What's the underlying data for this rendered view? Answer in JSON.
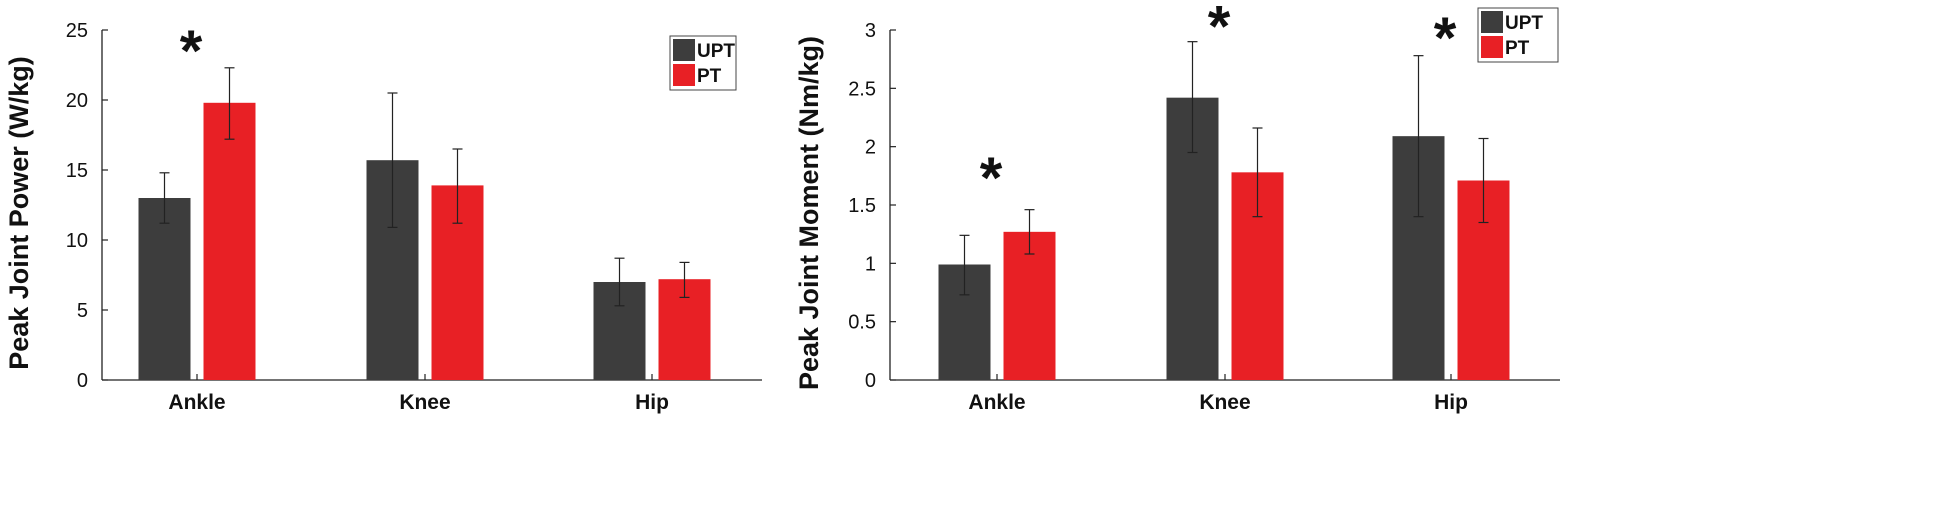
{
  "chart_data": [
    {
      "type": "bar",
      "title": "",
      "xlabel": "",
      "ylabel": "Peak Joint Power (W/kg)",
      "categories": [
        "Ankle",
        "Knee",
        "Hip"
      ],
      "ylim": [
        0,
        25
      ],
      "yticks": [
        0,
        5,
        10,
        15,
        20,
        25
      ],
      "series": [
        {
          "name": "UPT",
          "color": "#3d3d3d",
          "values": [
            13.0,
            15.7,
            7.0
          ],
          "err_low": [
            11.2,
            10.9,
            5.3
          ],
          "err_high": [
            14.8,
            20.5,
            8.7
          ]
        },
        {
          "name": "PT",
          "color": "#e82025",
          "values": [
            19.8,
            13.9,
            7.2
          ],
          "err_low": [
            17.2,
            11.2,
            5.9
          ],
          "err_high": [
            22.3,
            16.5,
            8.4
          ]
        }
      ],
      "legend": [
        "UPT",
        "PT"
      ],
      "legend_position": "top-right",
      "annotations": [
        {
          "text": "*",
          "category": "Ankle",
          "value": 24.5
        }
      ]
    },
    {
      "type": "bar",
      "title": "",
      "xlabel": "",
      "ylabel": "Peak Joint Moment (Nm/kg)",
      "categories": [
        "Ankle",
        "Knee",
        "Hip"
      ],
      "ylim": [
        0,
        3
      ],
      "yticks": [
        "0",
        "0.5",
        "1",
        "1.5",
        "2",
        "2.5",
        "3"
      ],
      "series": [
        {
          "name": "UPT",
          "color": "#3d3d3d",
          "values": [
            0.99,
            2.42,
            2.09
          ],
          "err_low": [
            0.73,
            1.95,
            1.4
          ],
          "err_high": [
            1.24,
            2.9,
            2.78
          ]
        },
        {
          "name": "PT",
          "color": "#e82025",
          "values": [
            1.27,
            1.78,
            1.71
          ],
          "err_low": [
            1.08,
            1.4,
            1.35
          ],
          "err_high": [
            1.46,
            2.16,
            2.07
          ]
        }
      ],
      "legend": [
        "UPT",
        "PT"
      ],
      "legend_position": "top-right",
      "annotations": [
        {
          "text": "*",
          "category": "Ankle",
          "value": 1.85
        },
        {
          "text": "*",
          "category": "Knee",
          "value": 3.15
        },
        {
          "text": "*",
          "category": "Hip",
          "value": 3.05
        }
      ]
    }
  ]
}
